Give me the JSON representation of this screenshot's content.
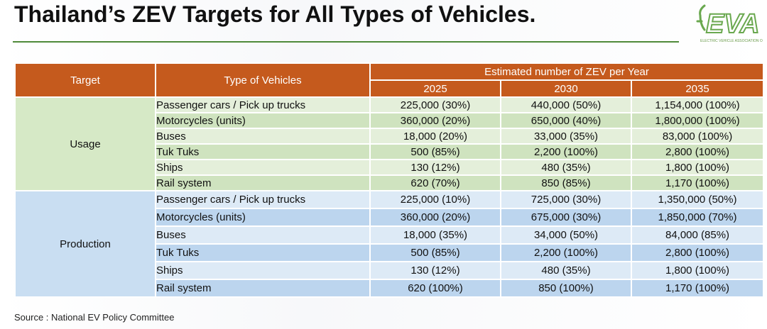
{
  "title": "Thailand’s ZEV Targets for All Types of Vehicles.",
  "logo": {
    "text": "EVA",
    "subtitle": "ELECTRIC VEHICLE ASSOCIATION O",
    "color": "#6aa84f"
  },
  "table": {
    "header": {
      "target": "Target",
      "type": "Type of Vehicles",
      "estimated": "Estimated number of ZEV per Year",
      "years": [
        "2025",
        "2030",
        "2035"
      ]
    },
    "groups": [
      {
        "name": "Usage",
        "rows": [
          {
            "vehicle": "Passenger cars / Pick up trucks",
            "values": [
              "225,000 (30%)",
              "440,000 (50%)",
              "1,154,000 (100%)"
            ]
          },
          {
            "vehicle": "Motorcycles (units)",
            "values": [
              "360,000 (20%)",
              "650,000 (40%)",
              "1,800,000 (100%)"
            ]
          },
          {
            "vehicle": "Buses",
            "values": [
              "18,000 (20%)",
              "33,000 (35%)",
              "83,000 (100%)"
            ]
          },
          {
            "vehicle": "Tuk Tuks",
            "values": [
              "500 (85%)",
              "2,200 (100%)",
              "2,800 (100%)"
            ]
          },
          {
            "vehicle": "Ships",
            "values": [
              "130 (12%)",
              "480 (35%)",
              "1,800 (100%)"
            ]
          },
          {
            "vehicle": "Rail system",
            "values": [
              "620 (70%)",
              "850 (85%)",
              "1,170 (100%)"
            ]
          }
        ]
      },
      {
        "name": "Production",
        "rows": [
          {
            "vehicle": "Passenger cars / Pick up trucks",
            "values": [
              "225,000 (10%)",
              "725,000 (30%)",
              "1,350,000 (50%)"
            ]
          },
          {
            "vehicle": "Motorcycles (units)",
            "values": [
              "360,000 (20%)",
              "675,000 (30%)",
              "1,850,000 (70%)"
            ]
          },
          {
            "vehicle": "Buses",
            "values": [
              "18,000 (35%)",
              "34,000 (50%)",
              "84,000 (85%)"
            ]
          },
          {
            "vehicle": "Tuk Tuks",
            "values": [
              "500 (85%)",
              "2,200 (100%)",
              "2,800 (100%)"
            ]
          },
          {
            "vehicle": "Ships",
            "values": [
              "130 (12%)",
              "480 (35%)",
              "1,800 (100%)"
            ]
          },
          {
            "vehicle": "Rail system",
            "values": [
              "620 (100%)",
              "850 (100%)",
              "1,170 (100%)"
            ]
          }
        ]
      }
    ]
  },
  "source": "Source : National EV Policy Committee",
  "colors": {
    "header": "#c55a1d",
    "usage_light": "#e4efda",
    "usage_dark": "#cfe3bf",
    "production_light": "#ddeaf6",
    "production_dark": "#bcd5ee",
    "rule": "#4f8a3a"
  }
}
